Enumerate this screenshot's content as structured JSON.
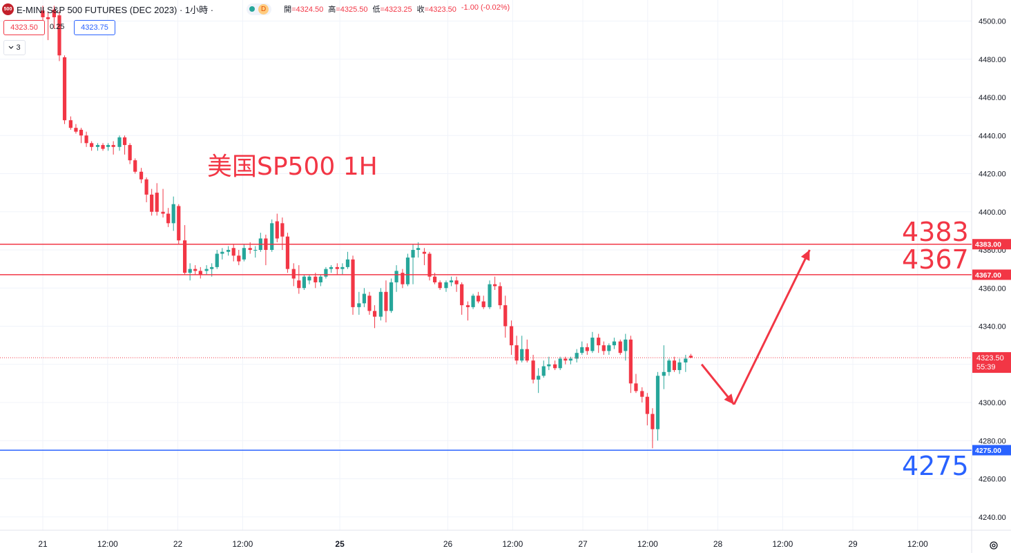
{
  "header": {
    "logo_text": "500",
    "title": "E-MINI S&P 500 FUTURES (DEC 2023) · 1小時 ·",
    "status_letter": "D",
    "ohlc": [
      {
        "key": "開",
        "value": "=4324.50"
      },
      {
        "key": "高",
        "value": "=4325.50"
      },
      {
        "key": "低",
        "value": "=4323.25"
      },
      {
        "key": "收",
        "value": "=4323.50"
      }
    ],
    "change": "-1.00 (-0.02%)"
  },
  "toolbar": {
    "sell_price": "4323.50",
    "spread": "0.25",
    "buy_price": "4323.75",
    "indicator_count": "3",
    "indicator_icon": "chevron-down-icon"
  },
  "annotation": "美国SP500 1H",
  "colors": {
    "up": "#26a69a",
    "down": "#f23645",
    "resistance": "#f23645",
    "support": "#2962ff",
    "grid": "#f0f3fa"
  },
  "chart_data": {
    "type": "candlestick",
    "title": "E-MINI S&P 500 FUTURES (DEC 2023) · 1小時",
    "ylim": [
      4230,
      4510
    ],
    "y_ticks": [
      4240,
      4260,
      4280,
      4300,
      4320,
      4340,
      4360,
      4380,
      4400,
      4420,
      4440,
      4460,
      4480,
      4500
    ],
    "y_tick_labels": [
      "4240.00",
      "4260.00",
      "4280.00",
      "4300.00",
      "4320.00",
      "4340.00",
      "4360.00",
      "4380.00",
      "4400.00",
      "4420.00",
      "4440.00",
      "4460.00",
      "4480.00",
      "4500.00"
    ],
    "x_ticks": [
      {
        "label": "21",
        "index": 0,
        "bold": false
      },
      {
        "label": "12:00",
        "index": 12,
        "bold": false
      },
      {
        "label": "22",
        "index": 25,
        "bold": false
      },
      {
        "label": "12:00",
        "index": 37,
        "bold": false
      },
      {
        "label": "25",
        "index": 55,
        "bold": true
      },
      {
        "label": "26",
        "index": 75,
        "bold": false
      },
      {
        "label": "12:00",
        "index": 87,
        "bold": false
      },
      {
        "label": "27",
        "index": 100,
        "bold": false
      },
      {
        "label": "12:00",
        "index": 112,
        "bold": false
      },
      {
        "label": "28",
        "index": 125,
        "bold": false
      },
      {
        "label": "12:00",
        "index": 137,
        "bold": false
      },
      {
        "label": "29",
        "index": 150,
        "bold": false
      },
      {
        "label": "12:00",
        "index": 162,
        "bold": false
      }
    ],
    "candles": [
      [
        4505.5,
        4508,
        4499,
        4502
      ],
      [
        4502,
        4505,
        4490,
        4501
      ],
      [
        4506,
        4508,
        4496,
        4502
      ],
      [
        4503,
        4505,
        4479,
        4482
      ],
      [
        4481,
        4482,
        4446,
        4448
      ],
      [
        4448,
        4450,
        4443,
        4444
      ],
      [
        4444,
        4446,
        4441,
        4442
      ],
      [
        4443,
        4444,
        4436,
        4440
      ],
      [
        4440,
        4442,
        4434,
        4436
      ],
      [
        4436,
        4437,
        4432,
        4434
      ],
      [
        4434,
        4436,
        4432,
        4435
      ],
      [
        4435,
        4436,
        4432,
        4433
      ],
      [
        4434,
        4436,
        4432,
        4435
      ],
      [
        4435,
        4437,
        4430,
        4434
      ],
      [
        4434,
        4440,
        4432,
        4439
      ],
      [
        4439,
        4440,
        4430,
        4435
      ],
      [
        4435,
        4436,
        4425,
        4427
      ],
      [
        4427,
        4428,
        4420,
        4421
      ],
      [
        4421,
        4423,
        4415,
        4417
      ],
      [
        4417,
        4418,
        4405,
        4409
      ],
      [
        4409,
        4412,
        4398,
        4400
      ],
      [
        4410,
        4415,
        4398,
        4400
      ],
      [
        4400,
        4412,
        4397,
        4399
      ],
      [
        4399,
        4402,
        4392,
        4394
      ],
      [
        4394,
        4408,
        4390,
        4404
      ],
      [
        4403,
        4404,
        4383,
        4385
      ],
      [
        4385,
        4393,
        4367,
        4368
      ],
      [
        4368,
        4373,
        4364,
        4370
      ],
      [
        4370,
        4372,
        4367,
        4369
      ],
      [
        4369,
        4371,
        4365,
        4367
      ],
      [
        4369,
        4372,
        4367,
        4370
      ],
      [
        4370,
        4373,
        4366,
        4371
      ],
      [
        4371,
        4380,
        4370,
        4378
      ],
      [
        4378,
        4381,
        4375,
        4379
      ],
      [
        4379,
        4382,
        4377,
        4380
      ],
      [
        4381,
        4383,
        4374,
        4377
      ],
      [
        4377,
        4380,
        4372,
        4374
      ],
      [
        4375,
        4383,
        4374,
        4381
      ],
      [
        4381,
        4384,
        4378,
        4380
      ],
      [
        4380,
        4382,
        4376,
        4380
      ],
      [
        4380,
        4389,
        4379,
        4386
      ],
      [
        4386,
        4388,
        4372,
        4380
      ],
      [
        4380,
        4396,
        4379,
        4394
      ],
      [
        4395,
        4399,
        4384,
        4386
      ],
      [
        4394,
        4397,
        4380,
        4387
      ],
      [
        4387,
        4389,
        4368,
        4370
      ],
      [
        4370,
        4373,
        4361,
        4365
      ],
      [
        4364,
        4372,
        4357,
        4360
      ],
      [
        4360,
        4367,
        4359,
        4366
      ],
      [
        4364,
        4367,
        4362,
        4366
      ],
      [
        4366,
        4368,
        4360,
        4363
      ],
      [
        4363,
        4367,
        4361,
        4366
      ],
      [
        4366,
        4371,
        4365,
        4370
      ],
      [
        4370,
        4372,
        4368,
        4371
      ],
      [
        4371,
        4373,
        4367,
        4370
      ],
      [
        4370,
        4373,
        4367,
        4371
      ],
      [
        4371,
        4379,
        4370,
        4375
      ],
      [
        4375,
        4377,
        4346,
        4350
      ],
      [
        4350,
        4358,
        4346,
        4352
      ],
      [
        4352,
        4360,
        4350,
        4357
      ],
      [
        4356,
        4358,
        4346,
        4348
      ],
      [
        4348,
        4351,
        4339,
        4345
      ],
      [
        4345,
        4360,
        4343,
        4358
      ],
      [
        4358,
        4364,
        4342,
        4348
      ],
      [
        4348,
        4365,
        4347,
        4363
      ],
      [
        4363,
        4372,
        4358,
        4369
      ],
      [
        4368,
        4370,
        4360,
        4362
      ],
      [
        4362,
        4378,
        4361,
        4376
      ],
      [
        4376,
        4383,
        4362,
        4380
      ],
      [
        4380,
        4384,
        4376,
        4381
      ],
      [
        4379,
        4381,
        4372,
        4378
      ],
      [
        4378,
        4379,
        4364,
        4366
      ],
      [
        4366,
        4368,
        4362,
        4363
      ],
      [
        4363,
        4364,
        4359,
        4360
      ],
      [
        4360,
        4364,
        4358,
        4363
      ],
      [
        4363,
        4366,
        4361,
        4364
      ],
      [
        4364,
        4366,
        4358,
        4362
      ],
      [
        4362,
        4363,
        4346,
        4351
      ],
      [
        4351,
        4353,
        4343,
        4350
      ],
      [
        4350,
        4357,
        4349,
        4356
      ],
      [
        4356,
        4358,
        4352,
        4353
      ],
      [
        4353,
        4356,
        4349,
        4350
      ],
      [
        4350,
        4364,
        4349,
        4362
      ],
      [
        4362,
        4366,
        4359,
        4361
      ],
      [
        4361,
        4363,
        4349,
        4351
      ],
      [
        4351,
        4356,
        4334,
        4340
      ],
      [
        4340,
        4343,
        4325,
        4330
      ],
      [
        4330,
        4335,
        4320,
        4322
      ],
      [
        4322,
        4335,
        4321,
        4328
      ],
      [
        4328,
        4333,
        4321,
        4322
      ],
      [
        4322,
        4325,
        4310,
        4312
      ],
      [
        4312,
        4318,
        4305,
        4314
      ],
      [
        4314,
        4322,
        4313,
        4319
      ],
      [
        4319,
        4324,
        4317,
        4320
      ],
      [
        4320,
        4322,
        4317,
        4318
      ],
      [
        4318,
        4324,
        4317,
        4323
      ],
      [
        4323,
        4324,
        4320,
        4322
      ],
      [
        4322,
        4324,
        4320,
        4323
      ],
      [
        4323,
        4328,
        4321,
        4326
      ],
      [
        4326,
        4332,
        4325,
        4329
      ],
      [
        4329,
        4331,
        4325,
        4327
      ],
      [
        4327,
        4337,
        4326,
        4334
      ],
      [
        4334,
        4336,
        4326,
        4330
      ],
      [
        4330,
        4332,
        4325,
        4327
      ],
      [
        4327,
        4331,
        4325,
        4330
      ],
      [
        4330,
        4334,
        4328,
        4332
      ],
      [
        4332,
        4333,
        4325,
        4326
      ],
      [
        4327,
        4336,
        4322,
        4333
      ],
      [
        4333,
        4335,
        4305,
        4310
      ],
      [
        4310,
        4315,
        4305,
        4306
      ],
      [
        4306,
        4308,
        4300,
        4303
      ],
      [
        4303,
        4305,
        4288,
        4294
      ],
      [
        4294,
        4297,
        4276,
        4286
      ],
      [
        4286,
        4316,
        4280,
        4314
      ],
      [
        4314,
        4330,
        4307,
        4316
      ],
      [
        4316,
        4323,
        4314,
        4322
      ],
      [
        4322,
        4324,
        4316,
        4317
      ],
      [
        4317,
        4323,
        4315,
        4321
      ],
      [
        4321,
        4325,
        4316,
        4323
      ],
      [
        4324.5,
        4325.5,
        4323.25,
        4323.5
      ]
    ],
    "x_positions": [
      28,
      34,
      41,
      47,
      53,
      60,
      66,
      72,
      78,
      84,
      91,
      97,
      103,
      109,
      116,
      122,
      128,
      134,
      141,
      147,
      153,
      159,
      166,
      172,
      178,
      184,
      191,
      197,
      203,
      209,
      216,
      222,
      228,
      234,
      241,
      247,
      253,
      259,
      266,
      272,
      278,
      284,
      291,
      297,
      303,
      309,
      316,
      322,
      328,
      334,
      341,
      347,
      353,
      359,
      366,
      372,
      378,
      384,
      391,
      397,
      403,
      409,
      416,
      422,
      428,
      434,
      441,
      447,
      453,
      459,
      466,
      472,
      478,
      484,
      491,
      497,
      503,
      509,
      516,
      522,
      528,
      534,
      541,
      547,
      553,
      559,
      566,
      572,
      578,
      584,
      591,
      597,
      603,
      609,
      616,
      622,
      628,
      634,
      641,
      647,
      653,
      659,
      666,
      672,
      678,
      684,
      691,
      697,
      703,
      709,
      716,
      722,
      728,
      734,
      741,
      747,
      753,
      759,
      766,
      772
    ],
    "levels": [
      {
        "value": 4383,
        "price_label": "4383.00",
        "big_label": "4383",
        "color": "#f23645"
      },
      {
        "value": 4367,
        "price_label": "4367.00",
        "big_label": "4367",
        "color": "#f23645"
      },
      {
        "value": 4275,
        "price_label": "4275.00",
        "big_label": "4275",
        "color": "#2962ff"
      }
    ],
    "current_price": {
      "value": 4323.5,
      "label": "4323.50",
      "countdown": "55:39"
    },
    "projection": [
      {
        "x_index": 122,
        "y": 4320
      },
      {
        "x_index": 128,
        "y": 4299
      },
      {
        "x_index": 142,
        "y": 4380
      }
    ]
  }
}
